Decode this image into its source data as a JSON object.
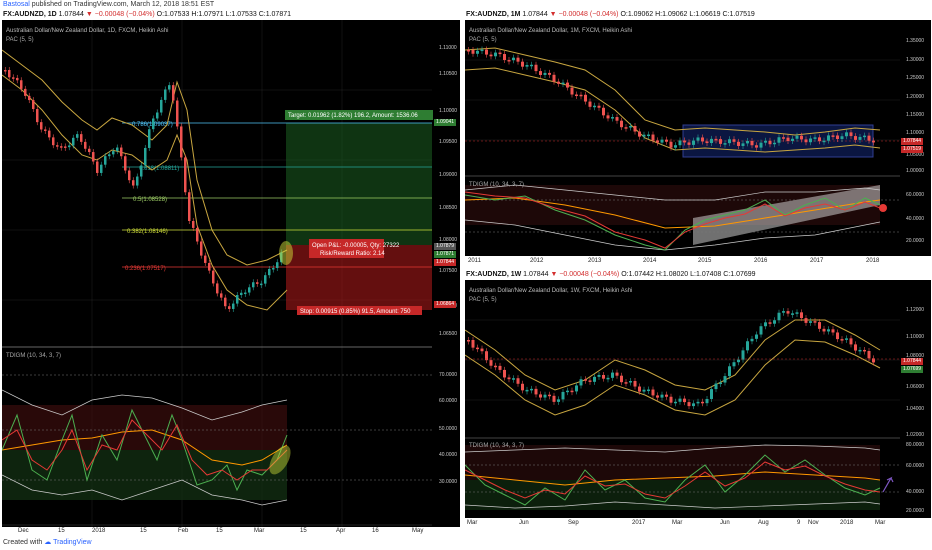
{
  "header": {
    "user": "Bastosal",
    "published": " published on TradingView.com, March 12, 2018 18:51 EST"
  },
  "footer": {
    "created_with": "Created with",
    "brand": "TradingView"
  },
  "colors": {
    "up": "#26a69a",
    "down": "#ef5350",
    "pac": "#c8a640",
    "tdi_red": "#e53935",
    "tdi_green": "#43a047",
    "tdi_orange": "#ff9800",
    "background": "#000000"
  },
  "left": {
    "symbol": "FX:AUDNZD, 1D",
    "ohlc": {
      "last": "1.07844",
      "change": "−0.00048 (−0.04%)",
      "o": "O:1.07533",
      "h": "H:1.07971",
      "l": "L:1.07533",
      "c": "C:1.07871"
    },
    "title": "Australian Dollar/New Zealand Dollar, 1D, FXCM, Heikin Ashi",
    "pac": "PAC (5, 5)",
    "tdi": "TDIGM (10, 34, 3, 7)",
    "price_axis": [
      "1.11000",
      "1.10500",
      "1.10000",
      "1.09500",
      "1.09000",
      "1.08500",
      "1.08000",
      "1.07500",
      "1.07000",
      "1.06500"
    ],
    "price_tags": [
      "1.09041",
      "1.07879",
      "1.07871",
      "1.07844",
      "1.06864"
    ],
    "tdi_axis": [
      "70.0000",
      "60.0000",
      "50.0000",
      "40.0000",
      "30.0000"
    ],
    "x_axis": [
      "Dec",
      "15",
      "2018",
      "15",
      "Feb",
      "15",
      "Mar",
      "15",
      "Apr",
      "16",
      "May"
    ],
    "fib": [
      {
        "label": "0.786(1.09037)"
      },
      {
        "label": "0.618(1.08811)"
      },
      {
        "label": "0.5(1.08528)"
      },
      {
        "label": "0.382(1.08146)"
      },
      {
        "label": "0.236(1.07517)"
      }
    ],
    "position": {
      "target": "Target: 0.01962 (1.82%) 196.2, Amount: 1536.06",
      "stop": "Stop: 0.00915 (0.85%) 91.5, Amount: 750",
      "pnl": "Open P&L: -0.00005, Qty: 27322",
      "rr": "Risk/Reward Ratio: 2.14"
    }
  },
  "right_top": {
    "symbol": "FX:AUDNZD, 1M",
    "ohlc": {
      "last": "1.07844",
      "change": "−0.00048 (−0.04%)",
      "o": "O:1.09062",
      "h": "H:1.09062",
      "l": "L:1.06619",
      "c": "C:1.07519"
    },
    "title": "Australian Dollar/New Zealand Dollar, 1M, FXCM, Heikin Ashi",
    "pac": "PAC (5, 5)",
    "tdi": "TDIGM (10, 34, 3, 7)",
    "price_axis": [
      "1.35000",
      "1.30000",
      "1.25000",
      "1.20000",
      "1.15000",
      "1.10000",
      "1.05000",
      "1.00000"
    ],
    "price_tags": [
      "1.07844",
      "1.07519"
    ],
    "tdi_axis": [
      "60.0000",
      "40.0000",
      "20.0000"
    ],
    "x_axis": [
      "2011",
      "2012",
      "2013",
      "2014",
      "2015",
      "2016",
      "2017",
      "2018"
    ]
  },
  "right_bottom": {
    "symbol": "FX:AUDNZD, 1W",
    "ohlc": {
      "last": "1.07844",
      "change": "−0.00048 (−0.04%)",
      "o": "O:1.07442",
      "h": "H:1.08020",
      "l": "L:1.07408",
      "c": "C:1.07699"
    },
    "title": "Australian Dollar/New Zealand Dollar, 1W, FXCM, Heikin Ashi",
    "pac": "PAC (5, 5)",
    "tdi": "TDIGM (10, 34, 3, 7)",
    "price_axis": [
      "1.12000",
      "1.10000",
      "1.08000",
      "1.06000",
      "1.04000",
      "1.02000"
    ],
    "price_tags": [
      "1.07844",
      "1.07699"
    ],
    "tdi_axis": [
      "80.0000",
      "60.0000",
      "40.0000",
      "20.0000"
    ],
    "x_axis": [
      "Mar",
      "Jun",
      "Sep",
      "2017",
      "Mar",
      "Jun",
      "Aug",
      "9",
      "Nov",
      "2018",
      "Mar"
    ]
  }
}
